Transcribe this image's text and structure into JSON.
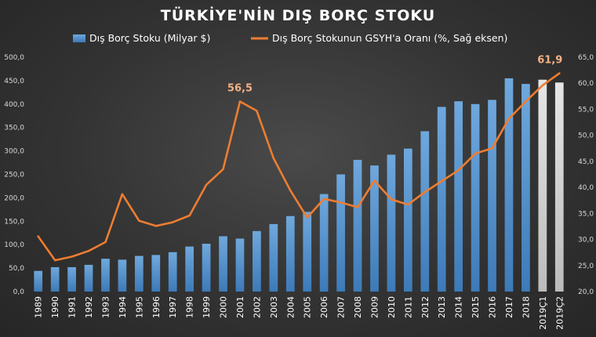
{
  "chart_data": {
    "type": "bar+line",
    "title": "TÜRKİYE'NİN DIŞ BORÇ STOKU",
    "categories": [
      "1989",
      "1990",
      "1991",
      "1992",
      "1993",
      "1994",
      "1995",
      "1996",
      "1997",
      "1998",
      "1999",
      "2000",
      "2001",
      "2002",
      "2003",
      "2004",
      "2005",
      "2006",
      "2007",
      "2008",
      "2009",
      "2010",
      "2011",
      "2012",
      "2013",
      "2014",
      "2015",
      "2016",
      "2017",
      "2018",
      "2019Ç1",
      "2019Ç2"
    ],
    "series": [
      {
        "name": "Dış Borç Stoku (Milyar $)",
        "type": "bar",
        "axis": "left",
        "values": [
          44,
          52,
          52,
          57,
          70,
          68,
          76,
          78,
          84,
          96,
          102,
          118,
          113,
          129,
          144,
          161,
          170,
          208,
          250,
          281,
          269,
          292,
          305,
          342,
          394,
          406,
          400,
          409,
          455,
          443,
          452,
          446
        ]
      },
      {
        "name": "Dış Borç Stokunun GSYH'a Oranı (%, Sağ eksen)",
        "type": "line",
        "axis": "right",
        "values": [
          30.6,
          26.0,
          26.7,
          27.8,
          29.5,
          38.7,
          33.6,
          32.6,
          33.3,
          34.6,
          40.5,
          43.5,
          56.5,
          54.7,
          45.6,
          39.4,
          34.2,
          37.8,
          37.1,
          36.2,
          41.3,
          37.7,
          36.7,
          39.1,
          41.2,
          43.3,
          46.5,
          47.5,
          53.2,
          56.5,
          59.6,
          61.9
        ]
      }
    ],
    "left_axis": {
      "min": 0,
      "max": 500,
      "step": 50,
      "tick_labels": [
        "0,0",
        "50,0",
        "100,0",
        "150,0",
        "200,0",
        "250,0",
        "300,0",
        "350,0",
        "400,0",
        "450,0",
        "500,0"
      ]
    },
    "right_axis": {
      "min": 20,
      "max": 65,
      "step": 5,
      "tick_labels": [
        "20,0",
        "25,0",
        "30,0",
        "35,0",
        "40,0",
        "45,0",
        "50,0",
        "55,0",
        "60,0",
        "65,0"
      ]
    },
    "data_labels": [
      {
        "category": "2001",
        "series": "line",
        "text": "56,5"
      },
      {
        "category": "2019Ç2",
        "series": "line",
        "text": "61,9"
      }
    ],
    "highlighted_categories": [
      "2019Ç1",
      "2019Ç2"
    ],
    "grid": false,
    "legend_position": "top",
    "colors": {
      "bar": "#5b9bd5",
      "bar_highlight": "#d9d9d9",
      "line": "#ed7d31",
      "label": "#f4b183",
      "background": "#3a3a3a"
    }
  }
}
